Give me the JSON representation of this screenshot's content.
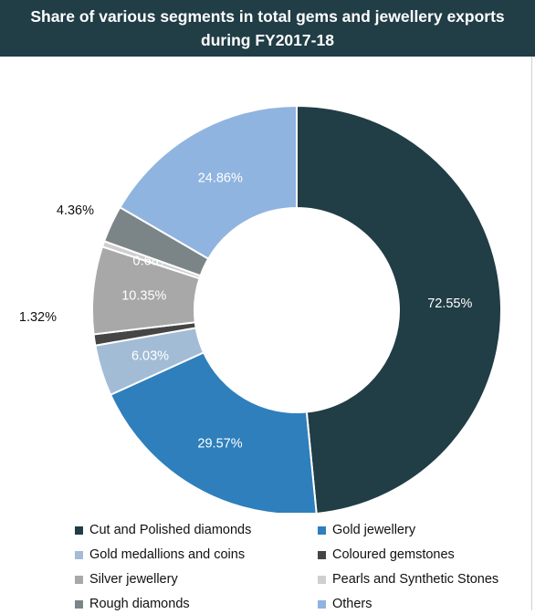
{
  "title": {
    "line1": "Share of various segments in total gems and jewellery exports",
    "line2": "during FY2017-18"
  },
  "chart_data": {
    "type": "pie",
    "donut": true,
    "labels": [
      "Cut and Polished diamonds",
      "Gold jewellery",
      "Gold medallions and coins",
      "Coloured gemstones",
      "Silver jewellery",
      "Pearls and Synthetic Stones",
      "Rough diamonds",
      "Others"
    ],
    "values": [
      72.55,
      29.57,
      6.03,
      1.32,
      10.35,
      0.68,
      4.36,
      24.86
    ],
    "display_labels": [
      "72.55%",
      "29.57%",
      "6.03%",
      "1.32%",
      "10.35%",
      "0.68%",
      "4.36%",
      "24.86%"
    ],
    "colors": [
      "#213d46",
      "#2e7fbc",
      "#a3bcd6",
      "#454545",
      "#a8a8a8",
      "#cfcfcf",
      "#7b8588",
      "#8fb4e0"
    ],
    "label_colors": [
      "#ffffff",
      "#ffffff",
      "#ffffff",
      "#111111",
      "#ffffff",
      "#ffffff",
      "#111111",
      "#ffffff"
    ],
    "legend_position": "bottom"
  }
}
